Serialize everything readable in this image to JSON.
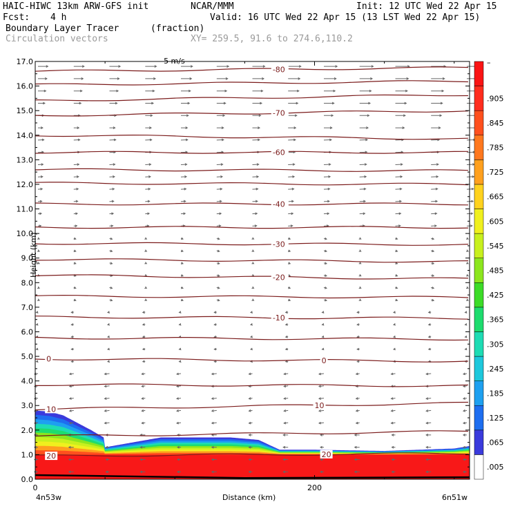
{
  "header": {
    "model": "HAIC-HIWC 13km ARW-GFS init",
    "org": "NCAR/MMM",
    "init": "Init: 12 UTC Wed 22 Apr 15",
    "fcst_label": "Fcst:",
    "fcst_value": "4 h",
    "valid": "Valid: 16 UTC Wed 22 Apr 15 (13 LST Wed 22 Apr 15)",
    "field": "Boundary Layer Tracer",
    "units": "(fraction)",
    "vectors": "Circulation vectors",
    "xy": "XY= 259.5, 91.6 to 274.6,110.2",
    "partial_label": "5 m/s"
  },
  "chart_data": {
    "type": "cross-section",
    "xlabel": "Distance (km)",
    "ylabel": "Height (km)",
    "x_start_label": "4n53w",
    "x_end_label": "6n51w",
    "xlim": [
      0,
      311
    ],
    "ylim": [
      0,
      17
    ],
    "x_ticks": [
      "0",
      "200"
    ],
    "y_ticks": [
      "0.0",
      "1.0",
      "2.0",
      "3.0",
      "4.0",
      "5.0",
      "6.0",
      "7.0",
      "8.0",
      "9.0",
      "10.0",
      "11.0",
      "12.0",
      "13.0",
      "14.0",
      "15.0",
      "16.0",
      "17.0"
    ],
    "colorbar_labels": [
      ".005",
      ".065",
      ".125",
      ".185",
      ".245",
      ".305",
      ".365",
      ".425",
      ".485",
      ".545",
      ".605",
      ".665",
      ".725",
      ".785",
      ".845",
      ".905",
      "–"
    ],
    "colorbar_colors": [
      "#ffffff",
      "#3a3adc",
      "#1e6ef0",
      "#1ea0f0",
      "#1ec8dc",
      "#1edcb4",
      "#1edc6e",
      "#3cdc28",
      "#8ce61e",
      "#c8f01e",
      "#f0f01e",
      "#ffd21e",
      "#ffa01e",
      "#ff781e",
      "#ff501e",
      "#ff2d1e",
      "#fa1414"
    ],
    "tracer": {
      "bl_top_x": [
        0,
        10,
        20,
        30,
        40,
        49,
        50,
        70,
        90,
        140,
        160,
        175,
        200,
        250,
        300,
        311
      ],
      "bl_top_y": [
        2.8,
        2.75,
        2.6,
        2.3,
        2.0,
        1.7,
        1.3,
        1.5,
        1.7,
        1.7,
        1.6,
        1.2,
        1.2,
        1.15,
        1.25,
        1.35
      ],
      "red_top_y": 1.0
    },
    "temperature_contours": [
      {
        "label": "-80",
        "y0": 16.6,
        "y1": 16.75
      },
      {
        "label": "",
        "y0": 16.05,
        "y1": 16.2
      },
      {
        "label": "",
        "y0": 15.4,
        "y1": 15.65
      },
      {
        "label": "-70",
        "y0": 14.8,
        "y1": 15.0
      },
      {
        "label": "",
        "y0": 14.0,
        "y1": 13.85
      },
      {
        "label": "-60",
        "y0": 13.3,
        "y1": 13.3
      },
      {
        "label": "",
        "y0": 12.6,
        "y1": 12.55
      },
      {
        "label": "",
        "y0": 12.05,
        "y1": 12.0
      },
      {
        "label": "-40",
        "y0": 11.2,
        "y1": 11.2
      },
      {
        "label": "",
        "y0": 10.25,
        "y1": 10.25
      },
      {
        "label": "-30",
        "y0": 9.6,
        "y1": 9.55
      },
      {
        "label": "",
        "y0": 8.95,
        "y1": 8.85
      },
      {
        "label": "-20",
        "y0": 8.3,
        "y1": 8.15
      },
      {
        "label": "",
        "y0": 7.45,
        "y1": 7.4
      },
      {
        "label": "-10",
        "y0": 6.6,
        "y1": 6.55
      },
      {
        "label": "",
        "y0": 5.75,
        "y1": 5.7
      },
      {
        "label": "0",
        "y0": 4.9,
        "y1": 4.8
      },
      {
        "label": "",
        "y0": 3.85,
        "y1": 3.8
      },
      {
        "label": "10",
        "y0": 2.85,
        "y1": 3.1
      },
      {
        "label": "",
        "y0": 1.75,
        "y1": 1.95
      },
      {
        "label": "20",
        "y0": 0.95,
        "y1": 1.05
      }
    ]
  }
}
